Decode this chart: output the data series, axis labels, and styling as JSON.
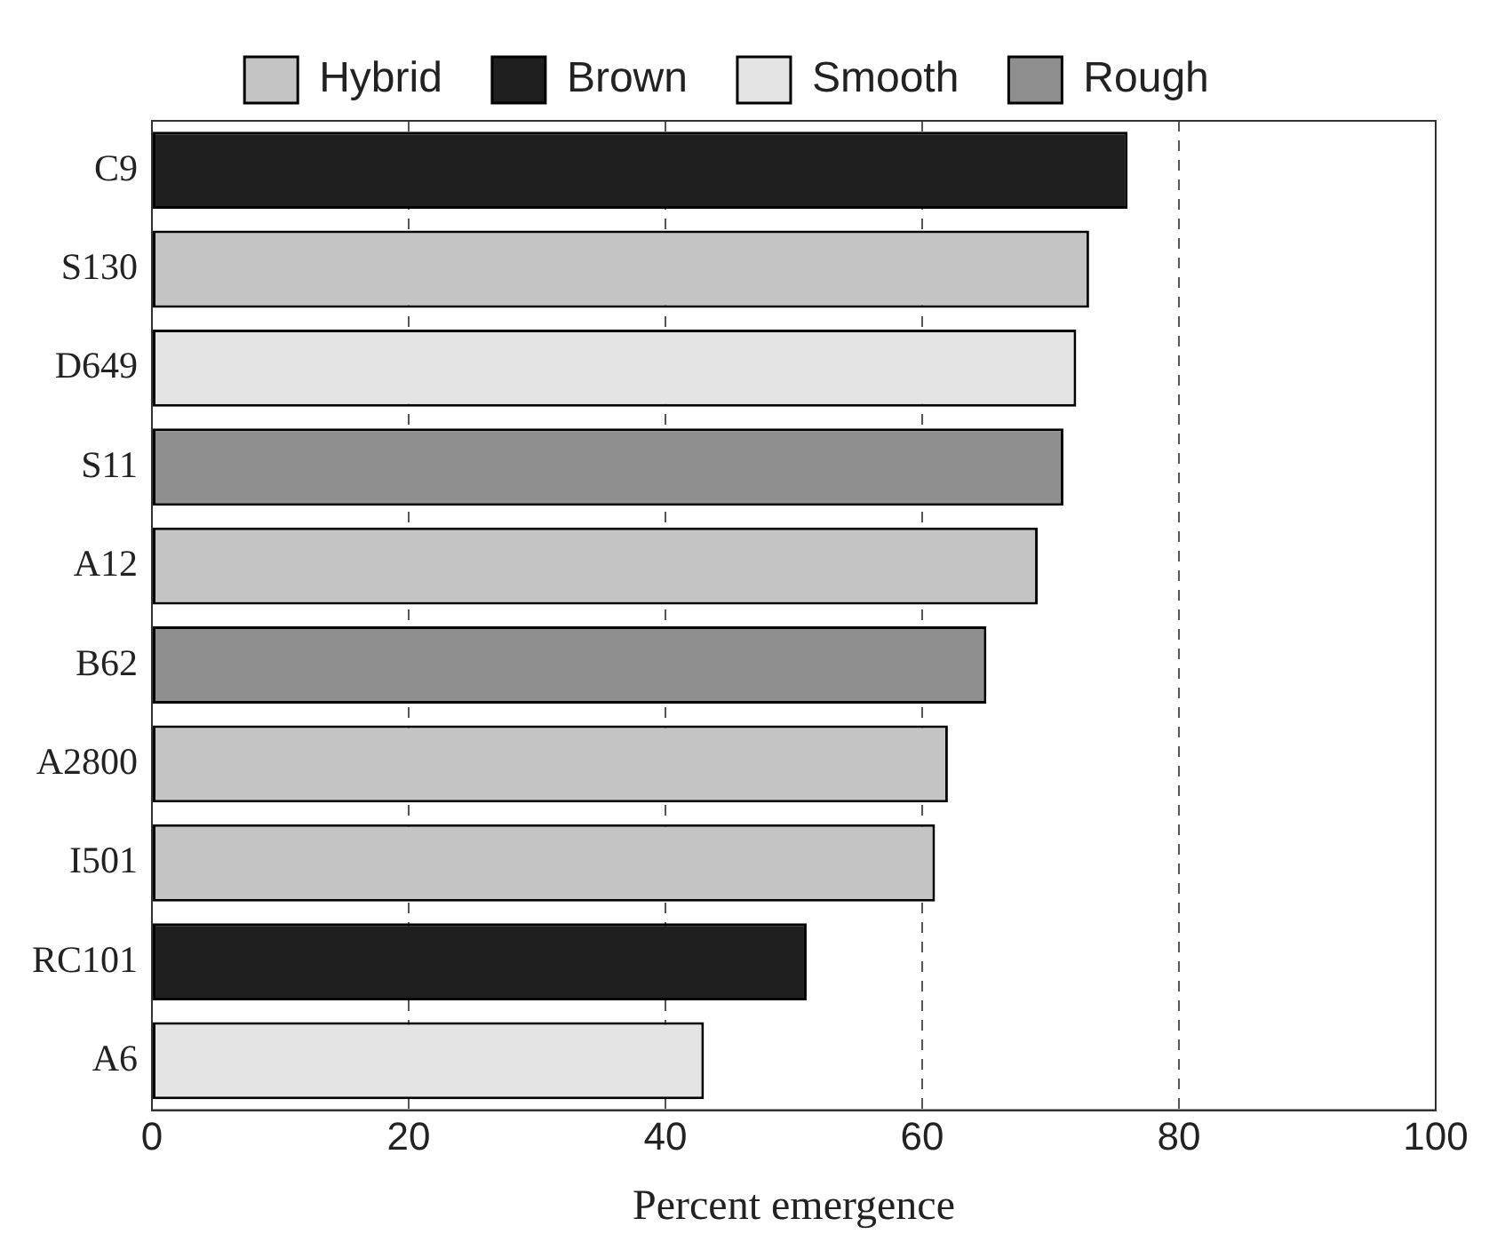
{
  "chart_data": {
    "type": "bar",
    "orientation": "horizontal",
    "stacked": true,
    "xlabel": "Percent emergence",
    "categories": [
      "C9",
      "S130",
      "D649",
      "S11",
      "A12",
      "B62",
      "A2800",
      "I501",
      "RC101",
      "A6"
    ],
    "series": [
      {
        "name": "Hybrid",
        "color": "#c4c4c4",
        "values": [
          null,
          73,
          null,
          null,
          69,
          null,
          62,
          61,
          null,
          null
        ]
      },
      {
        "name": "Brown",
        "color": "#1f1f1f",
        "values": [
          76,
          null,
          null,
          null,
          null,
          null,
          null,
          null,
          51,
          null
        ]
      },
      {
        "name": "Smooth",
        "color": "#e4e4e4",
        "values": [
          null,
          null,
          72,
          null,
          null,
          null,
          null,
          null,
          null,
          43
        ]
      },
      {
        "name": "Rough",
        "color": "#8f8f8f",
        "values": [
          null,
          null,
          null,
          71,
          null,
          65,
          null,
          null,
          null,
          null
        ]
      }
    ],
    "xlim": [
      0,
      100
    ],
    "xticks": [
      0,
      20,
      40,
      60,
      80,
      100
    ],
    "grid": "x",
    "line_style": "dashed",
    "legend": "top"
  }
}
